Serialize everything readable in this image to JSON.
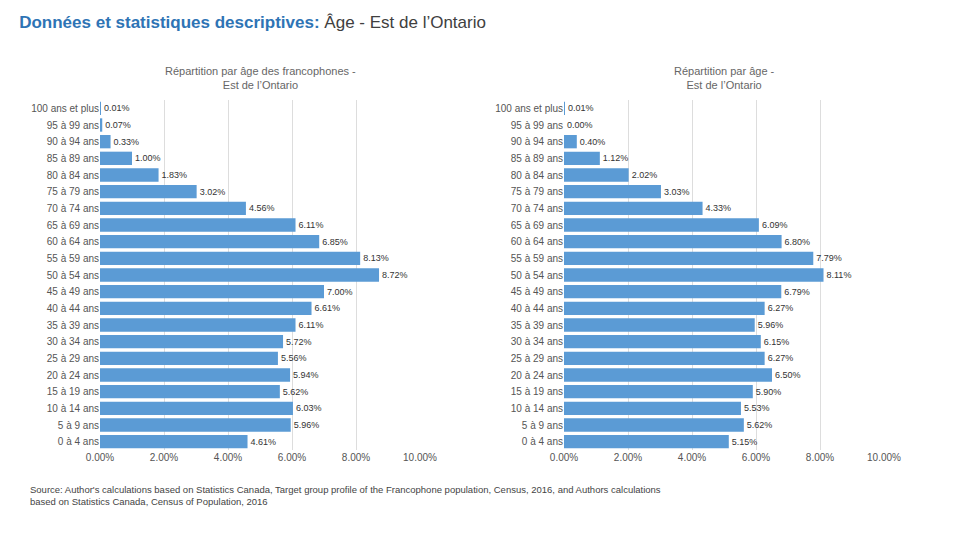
{
  "title": "Données et statistiques descriptives:",
  "subtitle": "Âge - Est de l’Ontario",
  "annotations": [
    "Source: Author's calculations based on Statistics Canada, Target group profile of the Francophone population, Census, 2016, and Authors calculations\nbased on Statistics Canada, Census of Population, 2016"
  ],
  "chart_data": [
    {
      "type": "bar",
      "orientation": "horizontal",
      "title": "Répartition par âge des francophones -\nEst de l’Ontario",
      "categories": [
        "100 ans et plus",
        "95 à 99 ans",
        "90 à 94 ans",
        "85 à 89 ans",
        "80 à 84 ans",
        "75 à 79 ans",
        "70 à 74 ans",
        "65 à 69 ans",
        "60 à 64 ans",
        "55 à 59 ans",
        "50 à 54 ans",
        "45 à 49 ans",
        "40 à 44 ans",
        "35 à 39 ans",
        "30 à 34 ans",
        "25 à 29 ans",
        "20 à 24 ans",
        "15 à 19 ans",
        "10 à 14 ans",
        "5 à 9 ans",
        "0 à 4 ans"
      ],
      "values": [
        0.01,
        0.07,
        0.33,
        1.0,
        1.83,
        3.02,
        4.56,
        6.11,
        6.85,
        8.13,
        8.72,
        7.0,
        6.61,
        6.11,
        5.72,
        5.56,
        5.94,
        5.62,
        6.03,
        5.96,
        4.61
      ],
      "value_labels": [
        "0.01%",
        "0.07%",
        "0.33%",
        "1.00%",
        "1.83%",
        "3.02%",
        "4.56%",
        "6.11%",
        "6.85%",
        "8.13%",
        "8.72%",
        "7.00%",
        "6.61%",
        "6.11%",
        "5.72%",
        "5.56%",
        "5.94%",
        "5.62%",
        "6.03%",
        "5.96%",
        "4.61%"
      ],
      "data_labels": true,
      "color": "#5B9BD5",
      "xlim": [
        0,
        10
      ],
      "xticks": [
        {
          "value": 0,
          "label": "0.00%"
        },
        {
          "value": 2,
          "label": "2.00%"
        },
        {
          "value": 4,
          "label": "4.00%"
        },
        {
          "value": 6,
          "label": "6.00%"
        },
        {
          "value": 8,
          "label": "8.00%"
        },
        {
          "value": 10,
          "label": "10.00%"
        }
      ],
      "grid": true
    },
    {
      "type": "bar",
      "orientation": "horizontal",
      "title": "Répartition par âge -\nEst de l’Ontario",
      "categories": [
        "100 ans et plus",
        "95 à 99 ans",
        "90 à 94 ans",
        "85 à 89 ans",
        "80 à 84 ans",
        "75 à 79 ans",
        "70 à 74 ans",
        "65 à 69 ans",
        "60 à 64 ans",
        "55 à 59 ans",
        "50 à 54 ans",
        "45 à 49 ans",
        "40 à 44 ans",
        "35 à 39 ans",
        "30 à 34 ans",
        "25 à 29 ans",
        "20 à 24 ans",
        "15 à 19 ans",
        "10 à 14 ans",
        "5 à 9 ans",
        "0 à 4 ans"
      ],
      "values": [
        0.01,
        0.0,
        0.4,
        1.12,
        2.02,
        3.03,
        4.33,
        6.09,
        6.8,
        7.79,
        8.11,
        6.79,
        6.27,
        5.96,
        6.15,
        6.27,
        6.5,
        5.9,
        5.53,
        5.62,
        5.15
      ],
      "value_labels": [
        "0.01%",
        "0.00%",
        "0.40%",
        "1.12%",
        "2.02%",
        "3.03%",
        "4.33%",
        "6.09%",
        "6.80%",
        "7.79%",
        "8.11%",
        "6.79%",
        "6.27%",
        "5.96%",
        "6.15%",
        "6.27%",
        "6.50%",
        "5.90%",
        "5.53%",
        "5.62%",
        "5.15%"
      ],
      "data_labels": true,
      "color": "#5B9BD5",
      "xlim": [
        0,
        10
      ],
      "xticks": [
        {
          "value": 0,
          "label": "0.00%"
        },
        {
          "value": 2,
          "label": "2.00%"
        },
        {
          "value": 4,
          "label": "4.00%"
        },
        {
          "value": 6,
          "label": "6.00%"
        },
        {
          "value": 8,
          "label": "8.00%"
        },
        {
          "value": 10,
          "label": "10.00%"
        }
      ],
      "grid": true
    }
  ]
}
